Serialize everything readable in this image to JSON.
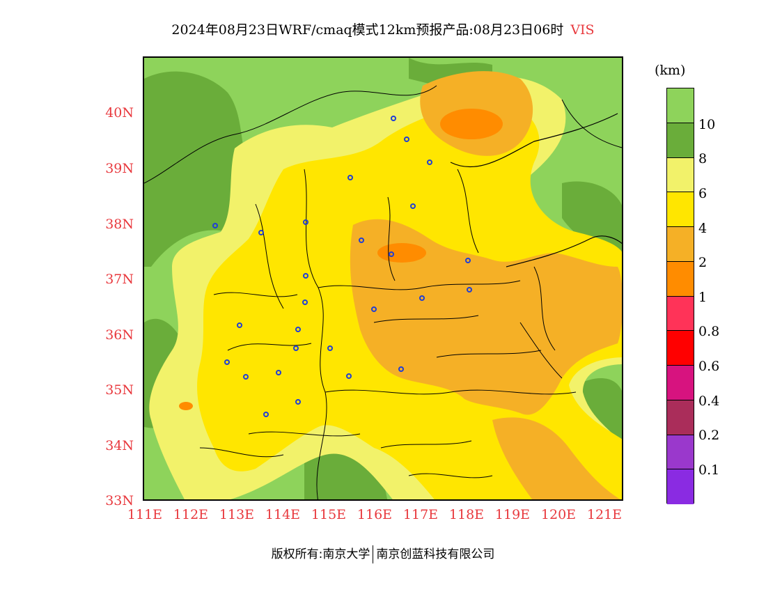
{
  "title": {
    "text": "2024年08月23日WRF/cmaq模式12km预报产品:08月23日06时",
    "variable": "VIS"
  },
  "map": {
    "lat_labels": [
      "40N",
      "39N",
      "38N",
      "37N",
      "36N",
      "35N",
      "34N",
      "33N"
    ],
    "lon_labels": [
      "111E",
      "112E",
      "113E",
      "114E",
      "115E",
      "116E",
      "117E",
      "118E",
      "119E",
      "120E",
      "121E"
    ],
    "colors": {
      "green_light": "#8ed35b",
      "green_dark": "#6aad3a",
      "yellow_light": "#f2f26a",
      "yellow": "#ffe600",
      "orange_light": "#f5b026",
      "orange": "#ff8c00",
      "lat_lon_label": "#e8383d",
      "city_marker": "#1f3ed6"
    }
  },
  "colorbar": {
    "units": "(km)",
    "colors_top_to_bottom": [
      "#8ed35b",
      "#6aad3a",
      "#f2f26a",
      "#ffe600",
      "#f5b026",
      "#ff8c00",
      "#ff3358",
      "#ff0000",
      "#d7137f",
      "#aa2d5a",
      "#9a38cc",
      "#8a2be2"
    ],
    "labels": [
      "10",
      "8",
      "6",
      "4",
      "2",
      "1",
      "0.8",
      "0.6",
      "0.4",
      "0.2",
      "0.1"
    ]
  },
  "footer": {
    "left": "版权所有:南京大学",
    "right": "南京创蓝科技有限公司"
  }
}
